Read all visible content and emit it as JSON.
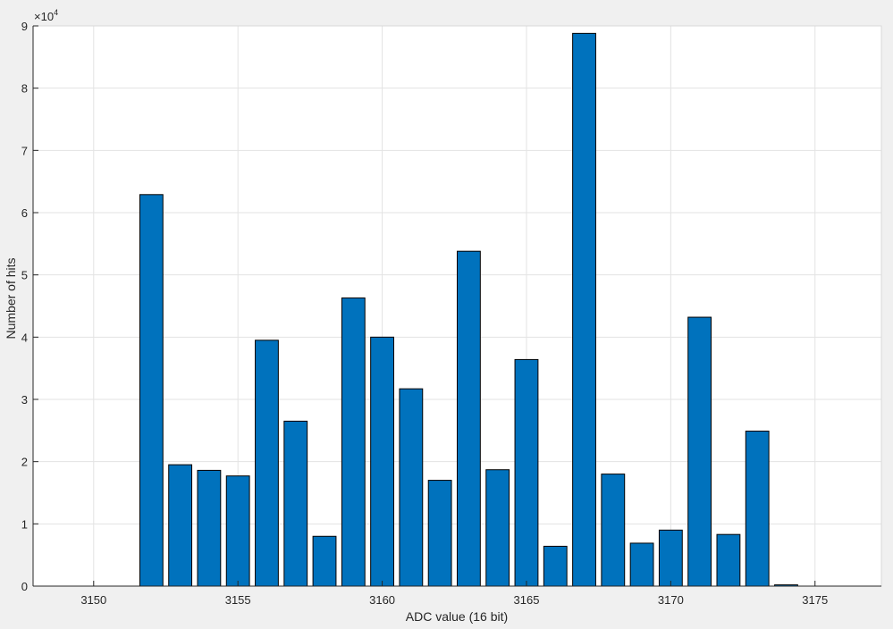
{
  "chart_data": {
    "type": "bar",
    "title": "",
    "xlabel": "ADC value (16 bit)",
    "ylabel": "Number of hits",
    "exponent_label": "×10",
    "exponent_power": "4",
    "xlim": [
      3147.9,
      3177.3
    ],
    "ylim": [
      0,
      90000
    ],
    "grid": true,
    "x_ticks": [
      3150,
      3155,
      3160,
      3165,
      3170,
      3175
    ],
    "y_ticks": [
      0,
      1,
      2,
      3,
      4,
      5,
      6,
      7,
      8,
      9
    ],
    "y_tick_scale": 10000,
    "bar_width": 0.8,
    "bar_color": "#0072BD",
    "bar_edge_color": "#000000",
    "axes_background": "#ffffff",
    "figure_background": "#f0f0f0",
    "x": [
      3149,
      3150,
      3151,
      3152,
      3153,
      3154,
      3155,
      3156,
      3157,
      3158,
      3159,
      3160,
      3161,
      3162,
      3163,
      3164,
      3165,
      3166,
      3167,
      3168,
      3169,
      3170,
      3171,
      3172,
      3173,
      3174,
      3175,
      3176
    ],
    "values": [
      0,
      0,
      0,
      62900,
      19500,
      18600,
      17700,
      39500,
      26500,
      8000,
      46300,
      40000,
      31700,
      17000,
      53800,
      18700,
      36400,
      6400,
      88800,
      18000,
      6900,
      9000,
      43200,
      8300,
      24900,
      200,
      0,
      0
    ]
  }
}
